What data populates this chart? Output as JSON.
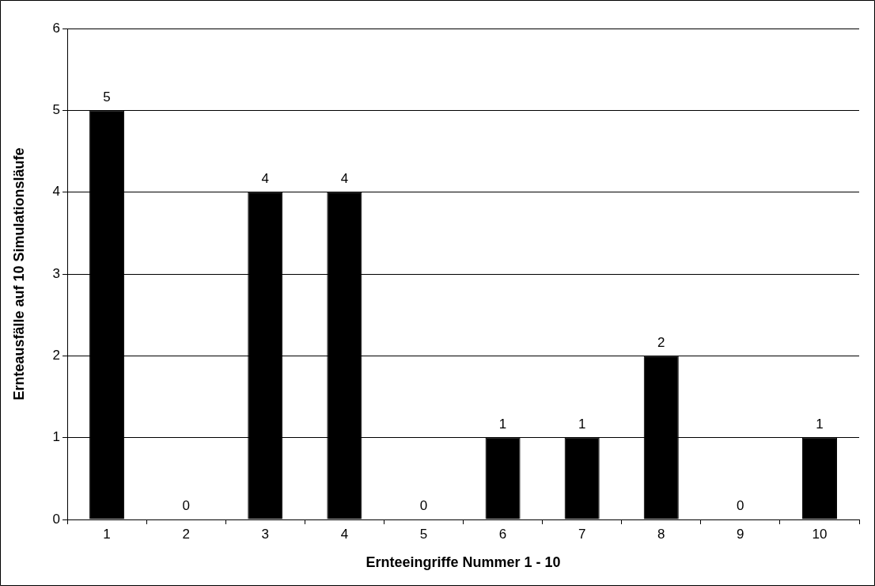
{
  "chart_data": {
    "type": "bar",
    "xlabel": "Ernteeingriffe Nummer 1 - 10",
    "ylabel": "Ernteausfälle auf 10 Simulationsläufe",
    "categories": [
      "1",
      "2",
      "3",
      "4",
      "5",
      "6",
      "7",
      "8",
      "9",
      "10"
    ],
    "values": [
      5,
      0,
      4,
      4,
      0,
      1,
      1,
      2,
      0,
      1
    ],
    "color": "#000000",
    "ylim": [
      0,
      6
    ],
    "yticks": [
      0,
      1,
      2,
      3,
      4,
      5,
      6
    ],
    "grid": "y",
    "data_labels": true,
    "legend": false
  }
}
